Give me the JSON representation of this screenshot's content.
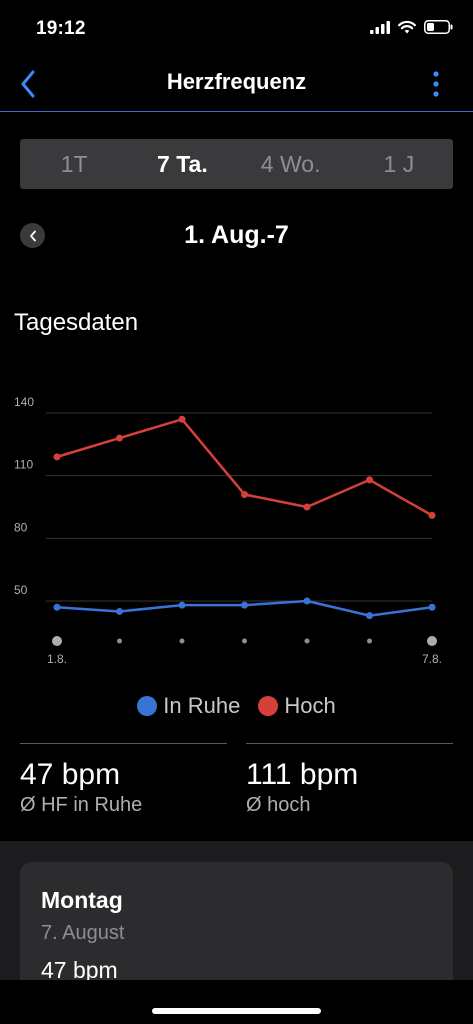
{
  "status_bar": {
    "time": "19:12"
  },
  "nav": {
    "title": "Herzfrequenz",
    "back_icon": "chevron-left-icon",
    "menu_icon": "more-vertical-icon",
    "accent": "#3b8bff"
  },
  "range_tabs": [
    {
      "label": "1T",
      "active": false
    },
    {
      "label": "7 Ta.",
      "active": true
    },
    {
      "label": "4 Wo.",
      "active": false
    },
    {
      "label": "1 J",
      "active": false
    }
  ],
  "period": {
    "label": "1. Aug.-7"
  },
  "section": {
    "title": "Tagesdaten"
  },
  "chart_data": {
    "type": "line",
    "x": [
      "1.8.",
      "2.8.",
      "3.8.",
      "4.8.",
      "5.8.",
      "6.8.",
      "7.8."
    ],
    "x_tick_labels": [
      "1.8.",
      "",
      "",
      "",
      "",
      "",
      "7.8."
    ],
    "y_ticks": [
      50,
      80,
      110,
      140
    ],
    "ylim": [
      50,
      140
    ],
    "grid": true,
    "legend_position": "bottom",
    "series": [
      {
        "name": "In Ruhe",
        "color": "#3a73d6",
        "values": [
          47,
          45,
          48,
          48,
          50,
          43,
          47
        ]
      },
      {
        "name": "Hoch",
        "color": "#d7403a",
        "values": [
          119,
          128,
          137,
          101,
          95,
          108,
          91
        ]
      }
    ]
  },
  "stats": [
    {
      "value": "47 bpm",
      "label": "Ø HF in Ruhe"
    },
    {
      "value": "111 bpm",
      "label": "Ø hoch"
    }
  ],
  "day_card": {
    "day": "Montag",
    "date": "7. August",
    "bpm": "47 bpm"
  }
}
